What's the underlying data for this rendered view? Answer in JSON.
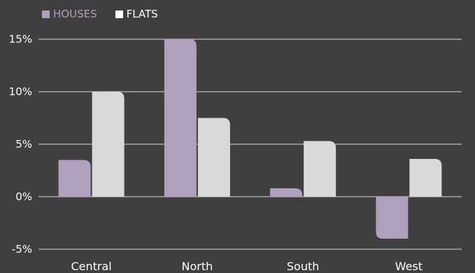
{
  "chart_data": {
    "type": "bar",
    "title": "",
    "xlabel": "",
    "ylabel": "",
    "categories": [
      "Central",
      "North",
      "South",
      "West"
    ],
    "series": [
      {
        "name": "HOUSES",
        "values": [
          3.5,
          15.0,
          0.8,
          -4.0
        ],
        "color": "#b09fbd"
      },
      {
        "name": "FLATS",
        "values": [
          10.0,
          7.5,
          5.3,
          3.6
        ],
        "color": "#d9d9d9"
      }
    ],
    "ylim": [
      -5,
      15
    ],
    "yticks": [
      -5,
      0,
      5,
      10,
      15
    ],
    "ytick_labels": [
      "-5%",
      "0%",
      "5%",
      "10%",
      "15%"
    ],
    "grid": true,
    "legend": "top-left",
    "legend_text_colors": [
      "#b09fbd",
      "#ffffff"
    ]
  }
}
